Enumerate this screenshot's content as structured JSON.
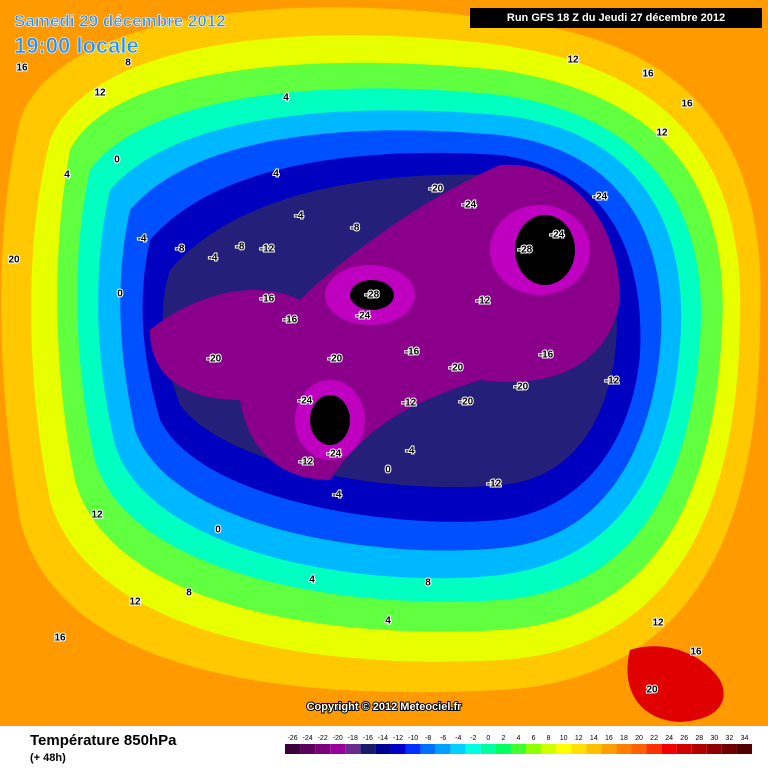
{
  "header": {
    "date": "Samedi 29 décembre 2012",
    "time": "19:00 locale",
    "run": "Run GFS 18 Z du Jeudi 27 décembre 2012"
  },
  "map": {
    "contour_labels": [
      16,
      16,
      16,
      8,
      12,
      12,
      12,
      4,
      4,
      4,
      0,
      0,
      -4,
      -4,
      -4,
      -8,
      -8,
      -8,
      -12,
      -12,
      -12,
      -12,
      -12,
      -12,
      -16,
      -16,
      -16,
      -16,
      -20,
      -20,
      -20,
      -20,
      -20,
      -20,
      -24,
      -24,
      -24,
      -24,
      -24,
      -24,
      -28,
      -28,
      -4,
      -4,
      0,
      0,
      4,
      4,
      8,
      8,
      12,
      12,
      12,
      16,
      16,
      20,
      20
    ],
    "copyright": "Copyright © 2012 Meteociel.fr"
  },
  "footer": {
    "title": "Température 850hPa",
    "lead": "(+ 48h)"
  },
  "colorbar": {
    "ticks": [
      -26,
      -24,
      -22,
      -20,
      -18,
      -16,
      -14,
      -12,
      -10,
      -8,
      -6,
      -4,
      -2,
      0,
      2,
      4,
      6,
      8,
      10,
      12,
      14,
      16,
      18,
      20,
      22,
      24,
      26,
      28,
      30,
      32,
      34
    ],
    "colors": [
      "#3a003a",
      "#5a005a",
      "#7a007a",
      "#9a009a",
      "#6a2a8a",
      "#1a1a6a",
      "#000090",
      "#0000c8",
      "#0030ff",
      "#0070ff",
      "#00a0ff",
      "#00d0ff",
      "#00ffe0",
      "#00ffa0",
      "#00ff60",
      "#40ff30",
      "#90ff00",
      "#d0ff00",
      "#ffff00",
      "#ffe000",
      "#ffc000",
      "#ffa000",
      "#ff8000",
      "#ff6000",
      "#ff3000",
      "#f00000",
      "#d00000",
      "#b00000",
      "#900000",
      "#700000",
      "#500000"
    ]
  }
}
